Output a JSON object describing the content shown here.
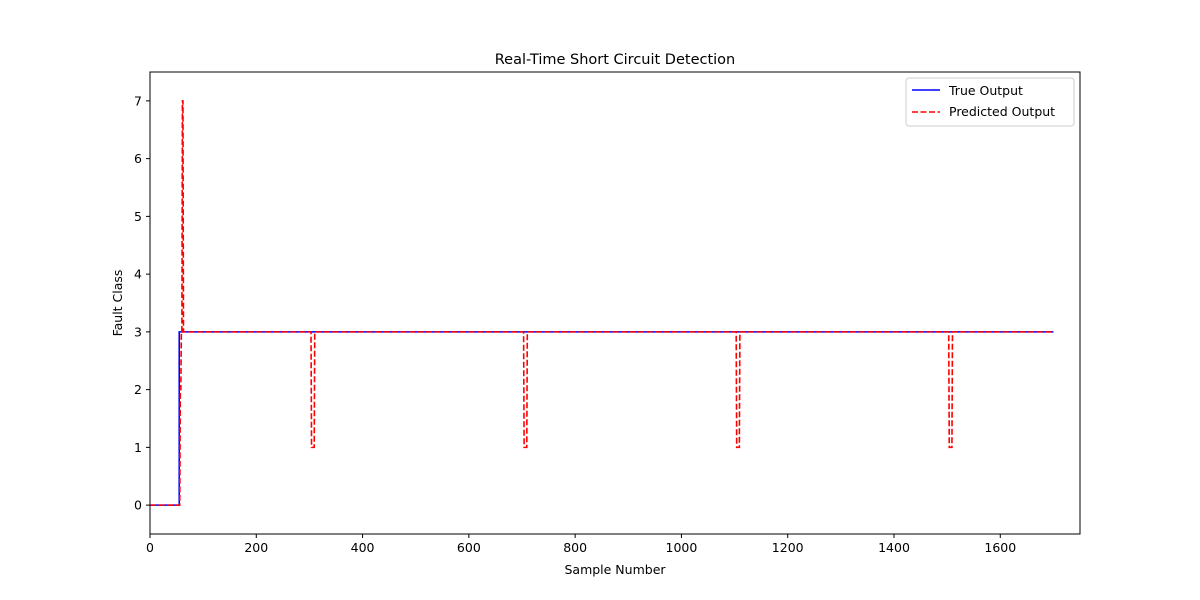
{
  "chart_data": {
    "type": "line",
    "title": "Real-Time Short Circuit Detection",
    "xlabel": "Sample Number",
    "ylabel": "Fault Class",
    "xlim": [
      0,
      1750
    ],
    "ylim": [
      -0.5,
      7.5
    ],
    "xticks": [
      0,
      200,
      400,
      600,
      800,
      1000,
      1200,
      1400,
      1600
    ],
    "yticks": [
      0,
      1,
      2,
      3,
      4,
      5,
      6,
      7
    ],
    "grid": false,
    "legend": "top-right",
    "series": [
      {
        "name": "True Output",
        "color": "#0000ff",
        "style": "solid",
        "x": [
          0,
          55,
          55,
          1700
        ],
        "y": [
          0,
          0,
          3,
          3
        ]
      },
      {
        "name": "Predicted Output",
        "color": "#ff0000",
        "style": "dashed",
        "x": [
          0,
          56,
          57,
          58,
          59,
          60,
          61,
          62,
          63,
          303,
          304,
          309,
          310,
          703,
          704,
          709,
          710,
          1103,
          1104,
          1109,
          1110,
          1503,
          1504,
          1509,
          1510,
          1700
        ],
        "y": [
          0,
          0,
          2,
          2,
          3,
          3,
          7,
          7,
          3,
          3,
          1,
          1,
          3,
          3,
          1,
          1,
          3,
          3,
          1,
          1,
          3,
          3,
          1,
          1,
          3,
          3
        ]
      }
    ]
  }
}
